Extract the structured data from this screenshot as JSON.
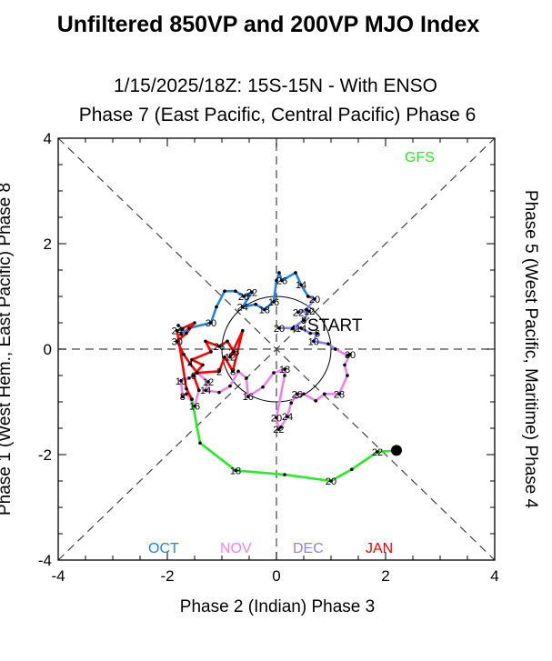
{
  "title": "Unfiltered 850VP and 200VP MJO Index",
  "subtitle": "1/15/2025/18Z: 15S-15N - With ENSO",
  "axis_labels": {
    "top": "Phase 7 (East Pacific, Central Pacific) Phase 6",
    "bottom": "Phase 2 (Indian) Phase 3",
    "left": "Phase 1 (West Hem., East Pacific) Phase 8",
    "right": "Phase 5 (West Pacific, Maritime) Phase 4"
  },
  "start_label": "START",
  "colors": {
    "OCT": "#1f86e6",
    "NOV": "#ee82ee",
    "DEC": "#8a84f0",
    "JAN": "#ff0000",
    "GFS": "#22ee22",
    "point": "#000000",
    "dashed": "#444444"
  },
  "chart_data": {
    "type": "line",
    "xlabel": "Phase 2 (Indian) Phase 3",
    "ylabel": "Phase 1 (West Hem., East Pacific) Phase 8",
    "xlim": [
      -4,
      4
    ],
    "ylim": [
      -4,
      4
    ],
    "xticks": [
      -4,
      -2,
      0,
      2,
      4
    ],
    "yticks": [
      -4,
      -2,
      0,
      2,
      4
    ],
    "unit_circle_radius": 1,
    "legend": [
      "OCT",
      "NOV",
      "DEC",
      "JAN"
    ],
    "forecast_label": "GFS",
    "series": [
      {
        "name": "OCT",
        "color": "#1f86e6",
        "points": [
          {
            "x": -1.8,
            "y": 0.45,
            "label": ""
          },
          {
            "x": -1.72,
            "y": 0.38,
            "label": ""
          },
          {
            "x": -1.75,
            "y": 0.28,
            "label": ""
          },
          {
            "x": -1.6,
            "y": 0.4,
            "label": ""
          },
          {
            "x": -1.2,
            "y": 0.5,
            "label": "30"
          },
          {
            "x": -1.1,
            "y": 0.8,
            "label": ""
          },
          {
            "x": -0.95,
            "y": 1.1,
            "label": ""
          },
          {
            "x": -0.75,
            "y": 1.1,
            "label": ""
          },
          {
            "x": -0.6,
            "y": 1.0,
            "label": "28"
          },
          {
            "x": -0.45,
            "y": 1.08,
            "label": "22"
          },
          {
            "x": -0.62,
            "y": 0.8,
            "label": "24"
          },
          {
            "x": -0.38,
            "y": 0.85,
            "label": ""
          },
          {
            "x": -0.22,
            "y": 0.75,
            "label": "18"
          },
          {
            "x": -0.05,
            "y": 0.9,
            "label": "16"
          },
          {
            "x": 0.0,
            "y": 1.3,
            "label": ""
          },
          {
            "x": 0.05,
            "y": 1.45,
            "label": ""
          },
          {
            "x": 0.1,
            "y": 1.3,
            "label": "26"
          },
          {
            "x": 0.35,
            "y": 1.45,
            "label": ""
          },
          {
            "x": 0.45,
            "y": 1.22,
            "label": "14"
          },
          {
            "x": 0.58,
            "y": 1.0,
            "label": ""
          }
        ]
      },
      {
        "name": "DEC",
        "color": "#8a84f0",
        "points": [
          {
            "x": 0.58,
            "y": 1.0,
            "label": ""
          },
          {
            "x": 0.7,
            "y": 0.95,
            "label": "20"
          },
          {
            "x": 0.55,
            "y": 0.75,
            "label": ""
          },
          {
            "x": 0.4,
            "y": 0.7,
            "label": "22"
          },
          {
            "x": 0.6,
            "y": 0.72,
            "label": "12"
          },
          {
            "x": 0.5,
            "y": 0.55,
            "label": "8"
          },
          {
            "x": 0.3,
            "y": 0.4,
            "label": "4"
          },
          {
            "x": 0.05,
            "y": 0.4,
            "label": "20"
          },
          {
            "x": 0.45,
            "y": 0.4,
            "label": "14"
          },
          {
            "x": 0.62,
            "y": 0.3,
            "label": ""
          },
          {
            "x": 0.75,
            "y": 0.3,
            "label": "6"
          },
          {
            "x": 0.68,
            "y": 0.15,
            "label": "10"
          },
          {
            "x": 0.95,
            "y": 0.1,
            "label": ""
          },
          {
            "x": 1.08,
            "y": 0.0,
            "label": ""
          }
        ]
      },
      {
        "name": "NOV",
        "color": "#ee82ee",
        "points": [
          {
            "x": 1.08,
            "y": 0.0,
            "label": ""
          },
          {
            "x": 1.3,
            "y": -0.12,
            "label": ""
          },
          {
            "x": 1.35,
            "y": -0.1,
            "label": "30"
          },
          {
            "x": 1.25,
            "y": -0.3,
            "label": ""
          },
          {
            "x": 1.3,
            "y": -0.5,
            "label": ""
          },
          {
            "x": 1.15,
            "y": -0.85,
            "label": "28"
          },
          {
            "x": 0.88,
            "y": -0.85,
            "label": ""
          },
          {
            "x": 0.72,
            "y": -0.98,
            "label": ""
          },
          {
            "x": 0.5,
            "y": -0.85,
            "label": ""
          },
          {
            "x": 0.38,
            "y": -0.85,
            "label": "26"
          },
          {
            "x": 0.27,
            "y": -1.02,
            "label": ""
          },
          {
            "x": 0.2,
            "y": -1.28,
            "label": "24"
          },
          {
            "x": 0.08,
            "y": -1.48,
            "label": ""
          },
          {
            "x": 0.04,
            "y": -1.52,
            "label": "22"
          },
          {
            "x": 0.0,
            "y": -1.3,
            "label": "20"
          },
          {
            "x": 0.15,
            "y": -0.5,
            "label": ""
          },
          {
            "x": 0.15,
            "y": -0.38,
            "label": "18"
          },
          {
            "x": -0.05,
            "y": -0.45,
            "label": ""
          },
          {
            "x": -0.25,
            "y": -0.72,
            "label": ""
          },
          {
            "x": -0.52,
            "y": -0.9,
            "label": "16"
          },
          {
            "x": -0.55,
            "y": -0.55,
            "label": ""
          },
          {
            "x": -0.7,
            "y": -0.42,
            "label": ""
          },
          {
            "x": -0.85,
            "y": -0.7,
            "label": ""
          },
          {
            "x": -1.05,
            "y": -0.82,
            "label": ""
          },
          {
            "x": -1.3,
            "y": -0.78,
            "label": "14"
          },
          {
            "x": -1.25,
            "y": -0.62,
            "label": "12"
          },
          {
            "x": -1.45,
            "y": -0.45,
            "label": ""
          },
          {
            "x": -1.6,
            "y": -0.55,
            "label": ""
          },
          {
            "x": -1.75,
            "y": -0.6,
            "label": "10"
          },
          {
            "x": -1.72,
            "y": -0.9,
            "label": "8"
          },
          {
            "x": -1.65,
            "y": -0.85,
            "label": ""
          },
          {
            "x": -1.5,
            "y": -1.08,
            "label": "16"
          },
          {
            "x": -1.42,
            "y": -0.78,
            "label": ""
          }
        ]
      },
      {
        "name": "JAN",
        "color": "#ff0000",
        "points": [
          {
            "x": -1.42,
            "y": -0.78,
            "label": ""
          },
          {
            "x": -1.52,
            "y": -0.5,
            "label": "6"
          },
          {
            "x": -1.35,
            "y": -0.3,
            "label": ""
          },
          {
            "x": -1.55,
            "y": -0.2,
            "label": ""
          },
          {
            "x": -1.2,
            "y": -0.05,
            "label": ""
          },
          {
            "x": -1.3,
            "y": 0.15,
            "label": ""
          },
          {
            "x": -1.05,
            "y": 0.05,
            "label": "26"
          },
          {
            "x": -0.9,
            "y": 0.15,
            "label": ""
          },
          {
            "x": -0.78,
            "y": -0.05,
            "label": "26"
          },
          {
            "x": -0.85,
            "y": -0.15,
            "label": "12"
          },
          {
            "x": -0.62,
            "y": 0.35,
            "label": ""
          },
          {
            "x": -0.8,
            "y": -0.42,
            "label": "8"
          },
          {
            "x": -0.95,
            "y": -0.15,
            "label": ""
          },
          {
            "x": -1.05,
            "y": -0.42,
            "label": "2"
          },
          {
            "x": -1.45,
            "y": -0.45,
            "label": ""
          },
          {
            "x": -1.58,
            "y": -0.28,
            "label": "4"
          },
          {
            "x": -1.7,
            "y": -0.1,
            "label": ""
          },
          {
            "x": -1.82,
            "y": 0.15,
            "label": "30"
          },
          {
            "x": -1.65,
            "y": 0.3,
            "label": ""
          },
          {
            "x": -1.5,
            "y": 0.5,
            "label": ""
          },
          {
            "x": -1.82,
            "y": 0.35,
            "label": "24"
          },
          {
            "x": -1.65,
            "y": -0.75,
            "label": ""
          },
          {
            "x": -1.55,
            "y": -0.95,
            "label": ""
          }
        ]
      },
      {
        "name": "GFS",
        "color": "#22ee22",
        "points": [
          {
            "x": -1.55,
            "y": -0.95,
            "label": ""
          },
          {
            "x": -1.4,
            "y": -1.78,
            "label": ""
          },
          {
            "x": -0.75,
            "y": -2.3,
            "label": "18"
          },
          {
            "x": 0.15,
            "y": -2.38,
            "label": ""
          },
          {
            "x": 1.0,
            "y": -2.5,
            "label": "20"
          },
          {
            "x": 1.38,
            "y": -2.28,
            "label": ""
          },
          {
            "x": 1.85,
            "y": -1.95,
            "label": "22"
          },
          {
            "x": 2.2,
            "y": -1.92,
            "label": ""
          }
        ]
      }
    ],
    "end_marker": {
      "x": 2.2,
      "y": -1.92
    },
    "start_marker": {
      "x": 0.35,
      "y": 0.45
    }
  }
}
